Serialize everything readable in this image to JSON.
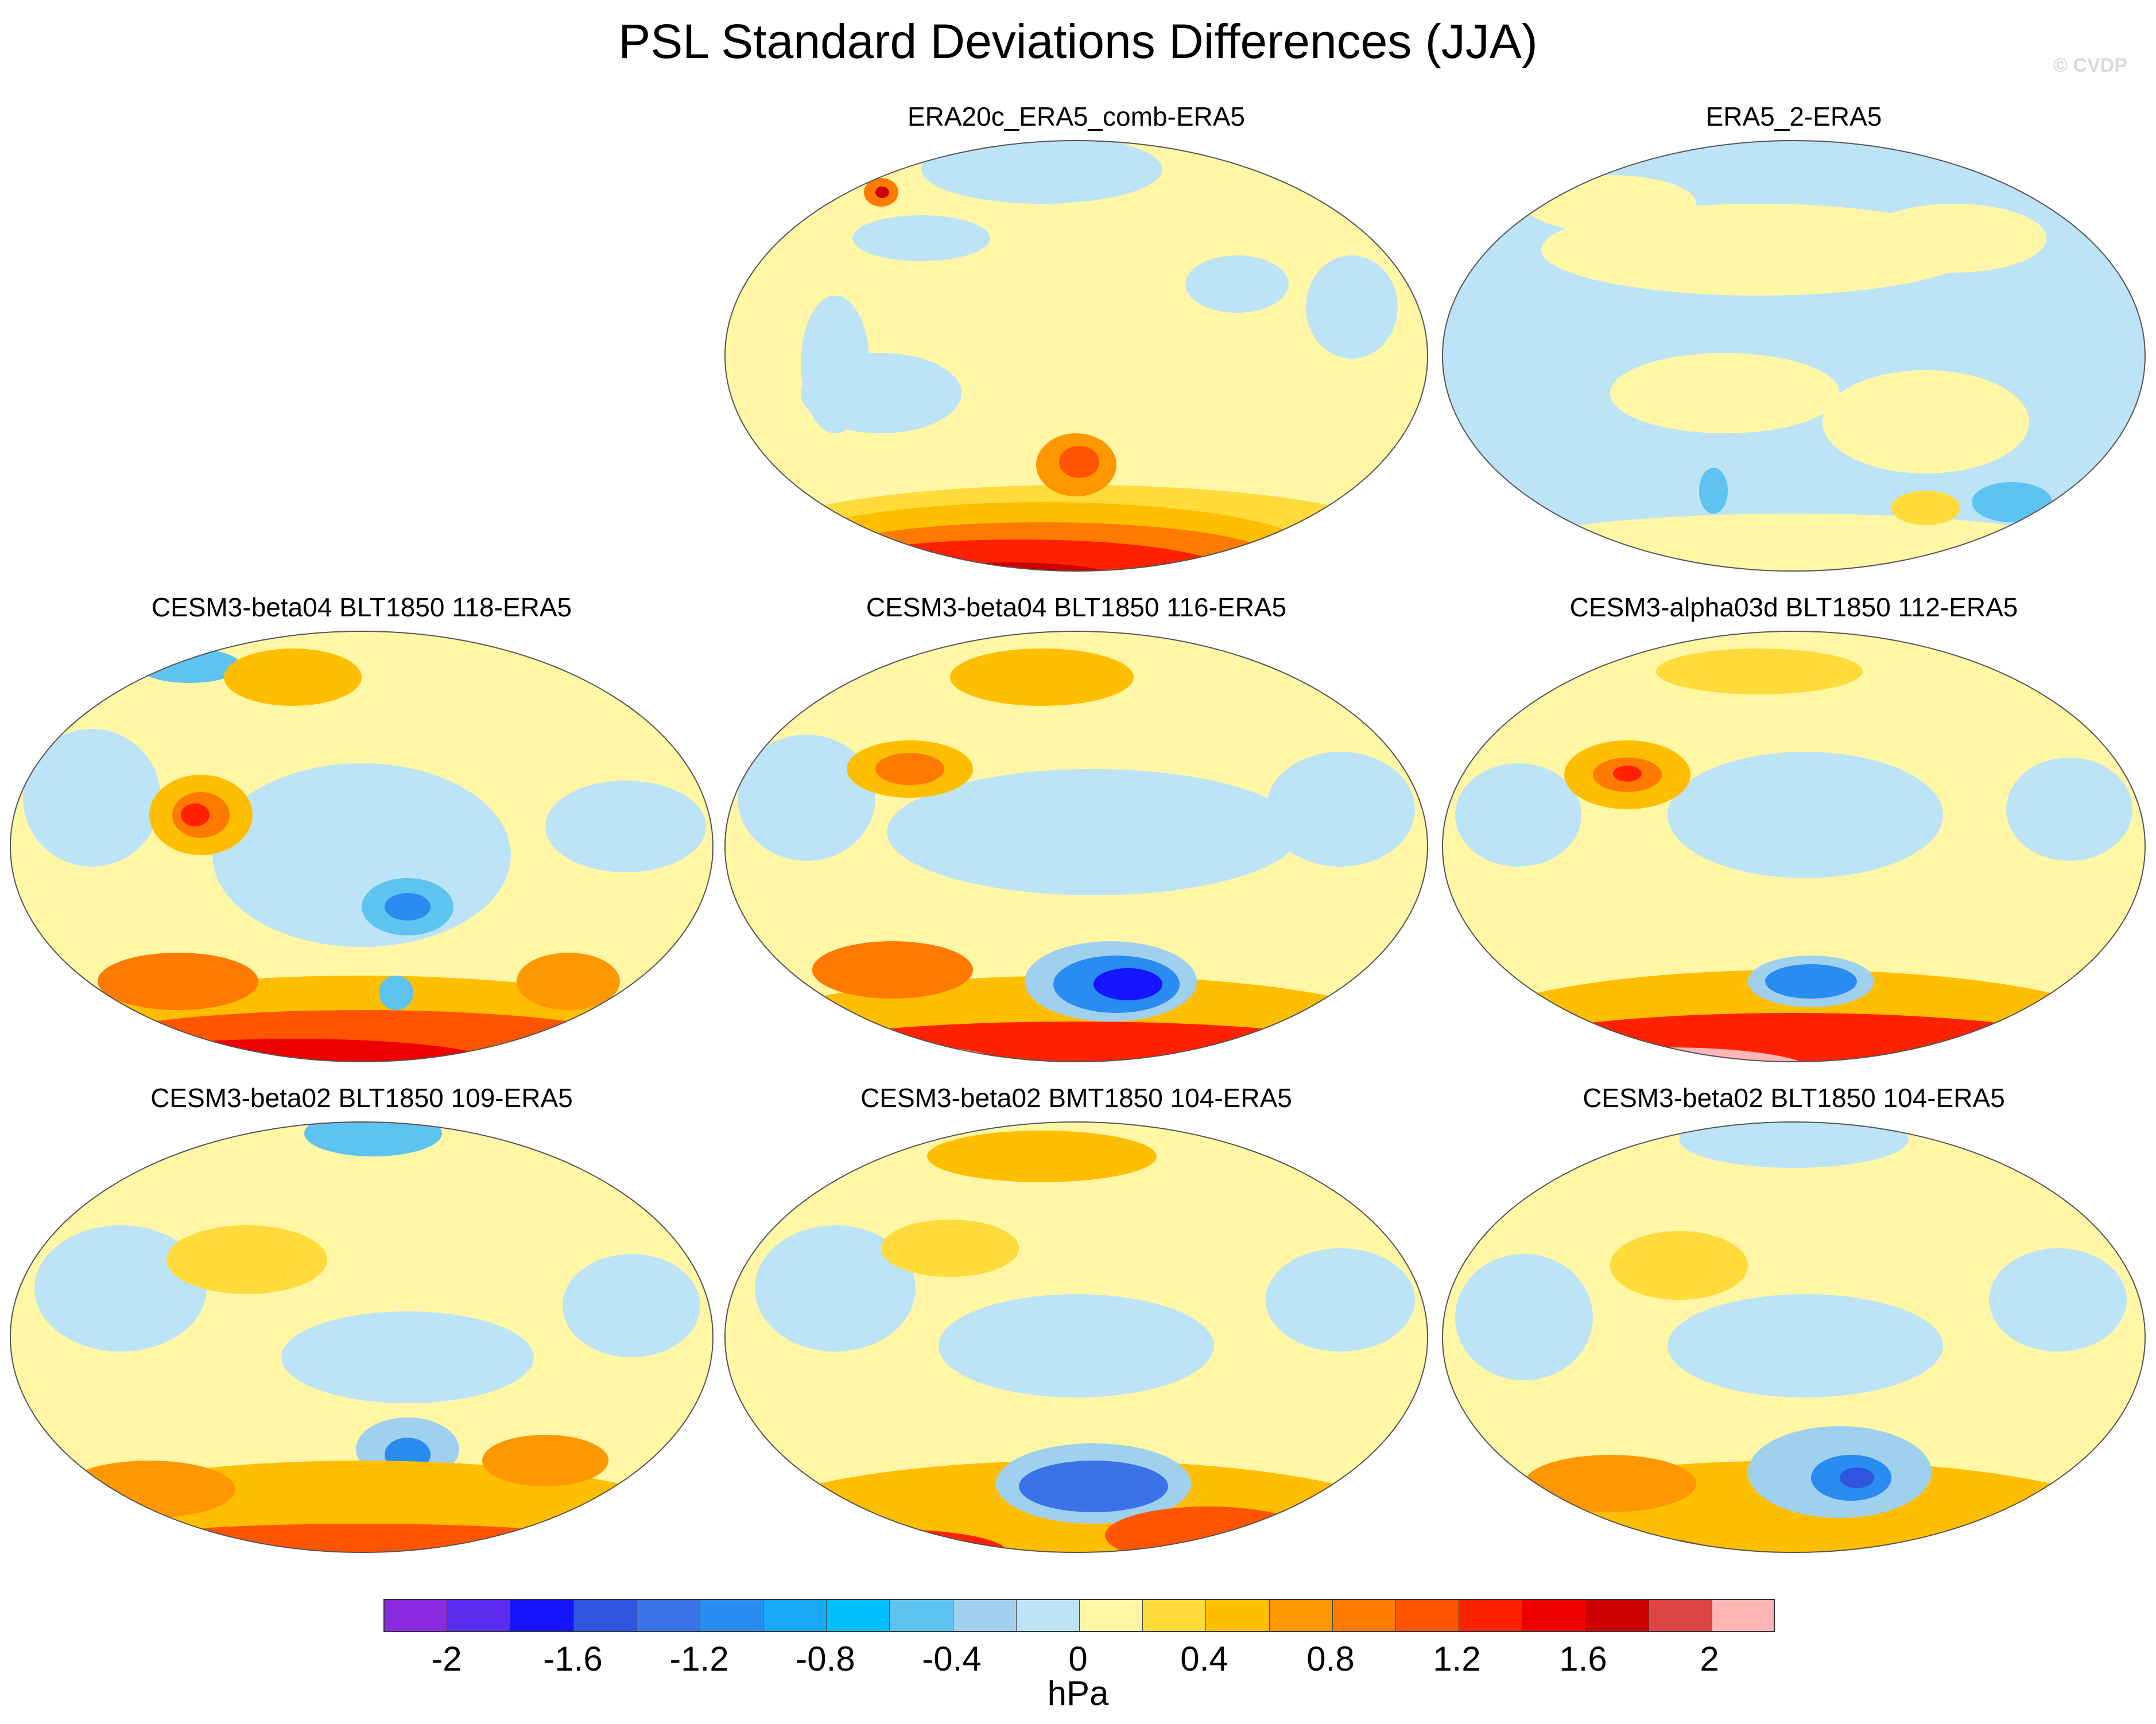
{
  "title": "PSL Standard Deviations Differences (JJA)",
  "watermark": "© CVDP",
  "colors": {
    "level_colors": [
      "#8a2be2",
      "#5a2cf0",
      "#1414ff",
      "#2f55e0",
      "#3a72e8",
      "#2a8cf0",
      "#1aa8f8",
      "#00c0ff",
      "#5ec3f0",
      "#9fd0ee",
      "#bde3f6",
      "#fff7a6",
      "#ffdc3c",
      "#ffbe00",
      "#ff9800",
      "#ff7a00",
      "#ff5500",
      "#ff2200",
      "#ee0000",
      "#cc0000",
      "#dd4444",
      "#ffb6b6"
    ],
    "ocean_zero": "#fff7a6",
    "land_line": "#777777"
  },
  "panels": [
    {
      "title": "ERA20c_ERA5_comb-ERA5",
      "pattern": "p1"
    },
    {
      "title": "ERA5_2-ERA5",
      "pattern": "p2"
    },
    {
      "title": "CESM3-beta04 BLT1850 118-ERA5",
      "pattern": "p3"
    },
    {
      "title": "CESM3-beta04 BLT1850 116-ERA5",
      "pattern": "p4"
    },
    {
      "title": "CESM3-alpha03d BLT1850 112-ERA5",
      "pattern": "p5"
    },
    {
      "title": "CESM3-beta02 BLT1850 109-ERA5",
      "pattern": "p6"
    },
    {
      "title": "CESM3-beta02 BMT1850 104-ERA5",
      "pattern": "p7"
    },
    {
      "title": "CESM3-beta02 BLT1850 104-ERA5",
      "pattern": "p8"
    }
  ],
  "colorbar": {
    "labels": [
      "-2",
      "-1.6",
      "-1.2",
      "-0.8",
      "-0.4",
      "0",
      "0.4",
      "0.8",
      "1.2",
      "1.6",
      "2"
    ],
    "units": "hPa"
  }
}
